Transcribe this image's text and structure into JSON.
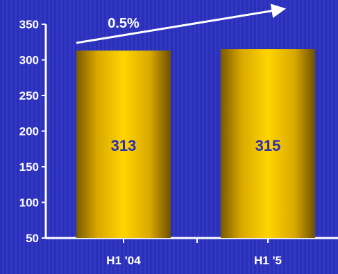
{
  "chart_data": {
    "type": "bar",
    "title": "",
    "xlabel": "",
    "ylabel": "",
    "categories": [
      "H1 '04",
      "H1 '5"
    ],
    "values": [
      313,
      315
    ],
    "data_labels": [
      "313",
      "315"
    ],
    "ylim": [
      50,
      350
    ],
    "yticks": [
      "350",
      "300",
      "250",
      "200",
      "150",
      "100",
      "50"
    ],
    "grid": false,
    "legend": "none",
    "annotation": {
      "text": "0.5%",
      "kind": "growth-arrow"
    },
    "colors": {
      "background": "#2e33bf",
      "bar_light": "#ffd200",
      "bar_dark": "#7a5a00",
      "axis": "#ffffff",
      "data_label": "#2b2fb5"
    }
  }
}
